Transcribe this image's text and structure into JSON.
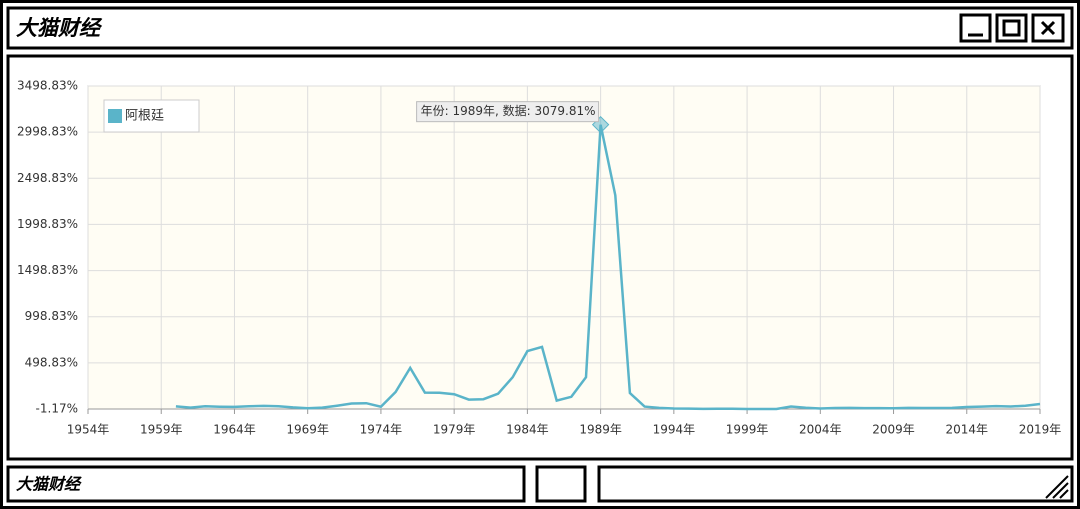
{
  "window": {
    "title": "大猫财经",
    "footer": "大猫财经"
  },
  "chart_data": {
    "type": "line",
    "tooltip": "年份: 1989年, 数据: 3079.81%",
    "highlight_index": 29,
    "legend": "top-left",
    "grid": true,
    "x": [
      1960,
      1961,
      1962,
      1963,
      1964,
      1965,
      1966,
      1967,
      1968,
      1969,
      1970,
      1971,
      1972,
      1973,
      1974,
      1975,
      1976,
      1977,
      1978,
      1979,
      1980,
      1981,
      1982,
      1983,
      1984,
      1985,
      1986,
      1987,
      1988,
      1989,
      1990,
      1991,
      1992,
      1993,
      1994,
      1995,
      1996,
      1997,
      1998,
      1999,
      2000,
      2001,
      2002,
      2003,
      2004,
      2005,
      2006,
      2007,
      2008,
      2009,
      2010,
      2011,
      2012,
      2013,
      2014,
      2015,
      2016,
      2017,
      2018,
      2019
    ],
    "series": [
      {
        "name": "阿根廷",
        "color": "#5ab4c9",
        "values": [
          27.1,
          13.7,
          28.1,
          24.0,
          22.1,
          28.6,
          31.9,
          29.2,
          16.2,
          7.6,
          13.6,
          34.7,
          58.5,
          61.2,
          23.5,
          182.9,
          444.0,
          176.0,
          175.5,
          159.5,
          100.8,
          104.5,
          164.8,
          343.8,
          626.7,
          672.2,
          90.1,
          131.3,
          343.0,
          3079.81,
          2314.0,
          171.7,
          24.9,
          10.6,
          4.2,
          3.4,
          0.2,
          0.5,
          0.9,
          -1.17,
          -0.9,
          -1.1,
          25.9,
          13.4,
          4.4,
          9.6,
          10.9,
          8.8,
          8.6,
          6.3,
          10.5,
          9.8,
          10.0,
          10.6,
          20.0,
          25.0,
          30.0,
          25.7,
          34.3,
          53.5
        ]
      }
    ],
    "xlim": [
      1954,
      2019
    ],
    "xticks": [
      {
        "value": 1954,
        "label": "1954年"
      },
      {
        "value": 1959,
        "label": "1959年"
      },
      {
        "value": 1964,
        "label": "1964年"
      },
      {
        "value": 1969,
        "label": "1969年"
      },
      {
        "value": 1974,
        "label": "1974年"
      },
      {
        "value": 1979,
        "label": "1979年"
      },
      {
        "value": 1984,
        "label": "1984年"
      },
      {
        "value": 1989,
        "label": "1989年"
      },
      {
        "value": 1994,
        "label": "1994年"
      },
      {
        "value": 1999,
        "label": "1999年"
      },
      {
        "value": 2004,
        "label": "2004年"
      },
      {
        "value": 2009,
        "label": "2009年"
      },
      {
        "value": 2014,
        "label": "2014年"
      },
      {
        "value": 2019,
        "label": "2019年"
      }
    ],
    "ylim": [
      -1.17,
      3498.83
    ],
    "yticks": [
      {
        "value": -1.17,
        "label": "-1.17%"
      },
      {
        "value": 498.83,
        "label": "498.83%"
      },
      {
        "value": 998.83,
        "label": "998.83%"
      },
      {
        "value": 1498.83,
        "label": "1498.83%"
      },
      {
        "value": 1998.83,
        "label": "1998.83%"
      },
      {
        "value": 2498.83,
        "label": "2498.83%"
      },
      {
        "value": 2998.83,
        "label": "2998.83%"
      },
      {
        "value": 3498.83,
        "label": "3498.83%"
      }
    ]
  }
}
